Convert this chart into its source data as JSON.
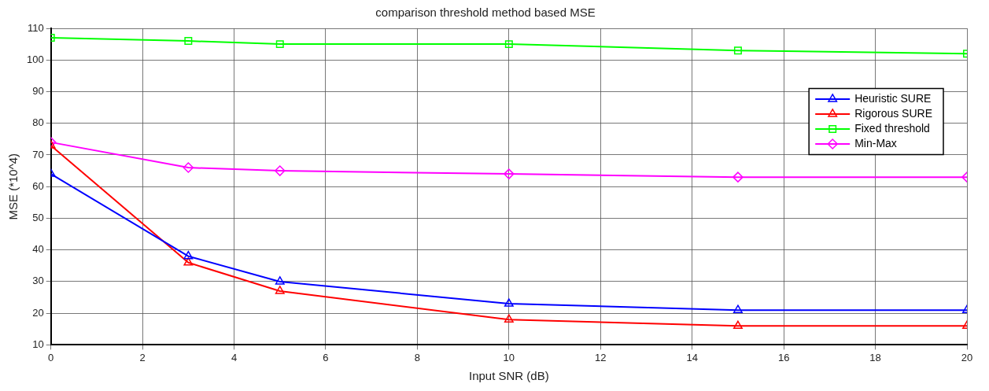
{
  "chart_data": {
    "type": "line",
    "title": "comparison threshold method based MSE",
    "xlabel": "Input SNR (dB)",
    "ylabel": "MSE (*10^4)",
    "x": [
      0,
      3,
      5,
      10,
      15,
      20
    ],
    "series": [
      {
        "name": "Heuristic SURE",
        "color": "#0000ff",
        "marker": "triangle",
        "values": [
          64,
          38,
          30,
          23,
          21,
          21
        ]
      },
      {
        "name": "Rigorous SURE",
        "color": "#ff0000",
        "marker": "triangle",
        "values": [
          73,
          36,
          27,
          18,
          16,
          16
        ]
      },
      {
        "name": "Fixed threshold",
        "color": "#00ff00",
        "marker": "square",
        "values": [
          107,
          106,
          105,
          105,
          103,
          102
        ]
      },
      {
        "name": "Min-Max",
        "color": "#ff00ff",
        "marker": "diamond",
        "values": [
          74,
          66,
          65,
          64,
          63,
          63
        ]
      }
    ],
    "xlim": [
      0,
      20
    ],
    "xticks": [
      0,
      2,
      4,
      6,
      8,
      10,
      12,
      14,
      16,
      18,
      20
    ],
    "ylim": [
      10,
      110
    ],
    "yticks": [
      10,
      20,
      30,
      40,
      50,
      60,
      70,
      80,
      90,
      100,
      110
    ],
    "grid": true,
    "legend": "top right",
    "line_style": "solid"
  }
}
